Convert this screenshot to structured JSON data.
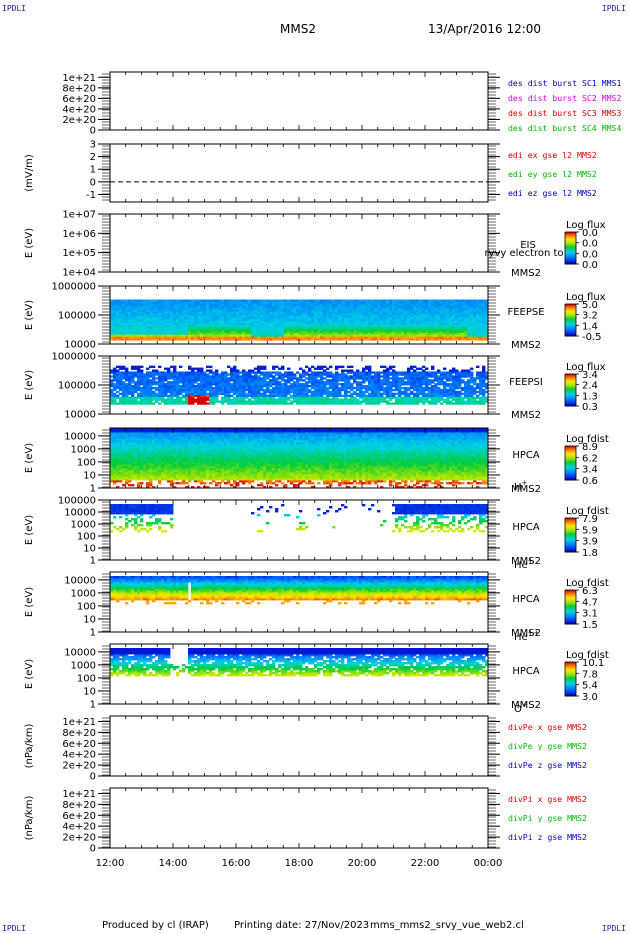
{
  "header": {
    "mission": "MMS2",
    "datetime": "13/Apr/2016 12:00",
    "corner_label": "IPDLI"
  },
  "footer": {
    "produced_by": "Produced by cl (IRAP)",
    "printing_date": "Printing date: 27/Nov/2023",
    "script": "mms_mms2_srvy_vue_web2.cl"
  },
  "time_axis": {
    "ticks": [
      "12:00",
      "14:00",
      "16:00",
      "18:00",
      "20:00",
      "22:00",
      "00:00"
    ],
    "start_hour": 12,
    "end_hour": 24
  },
  "chart_data": [
    {
      "type": "line",
      "ylabel": "",
      "yticks": [
        "1e+21",
        "8e+20",
        "6e+20",
        "4e+20",
        "2e+20",
        "0"
      ],
      "ylim": [
        0,
        1.1e+21
      ],
      "dashed_zero": true,
      "legend": [
        {
          "label": "des dist burst SC1 MMS1",
          "color": "#0000cc"
        },
        {
          "label": "des dist burst SC2 MMS2",
          "color": "#dd00dd"
        },
        {
          "label": "des dist burst SC3 MMS3",
          "color": "#dd0000"
        },
        {
          "label": "des dist burst SC4 MMS4",
          "color": "#00bb00"
        }
      ]
    },
    {
      "type": "line",
      "ylabel": "(mV/m)",
      "yticks": [
        "3",
        "2",
        "1",
        "0",
        "-1"
      ],
      "ylim": [
        -1.6,
        3
      ],
      "dashed_zero": true,
      "legend": [
        {
          "label": "edi ex gse l2 MMS2",
          "color": "#dd0000"
        },
        {
          "label": "edi ey gse l2 MMS2",
          "color": "#00bb00"
        },
        {
          "label": "edi ez gse l2 MMS2",
          "color": "#0000cc"
        }
      ]
    },
    {
      "type": "heatmap",
      "ylabel": "E (eV)",
      "yticks": [
        "1e+07",
        "1e+06",
        "1e+05",
        "1e+04"
      ],
      "ylim": [
        10000.0,
        10000000.0
      ],
      "instrument": "EIS",
      "extra": "ryvy electron to",
      "sc": "MMS2",
      "species": "",
      "cb_title": "Log flux",
      "cb_ticks": [
        "0.0",
        "0.0",
        "0.0",
        "0.0"
      ],
      "pattern": "empty"
    },
    {
      "type": "heatmap",
      "ylabel": "E (eV)",
      "yticks": [
        "1000000",
        "100000",
        "10000"
      ],
      "ylim": [
        10000.0,
        1000000.0
      ],
      "instrument": "FEEPSE",
      "extra": "",
      "sc": "MMS2",
      "species": "",
      "cb_title": "Log flux",
      "cb_ticks": [
        "5.0",
        "3.2",
        "1.4",
        "-0.5"
      ],
      "pattern": "feepse"
    },
    {
      "type": "heatmap",
      "ylabel": "E (eV)",
      "yticks": [
        "1000000",
        "100000",
        "10000"
      ],
      "ylim": [
        10000.0,
        1000000.0
      ],
      "instrument": "FEEPSI",
      "extra": "",
      "sc": "MMS2",
      "species": "",
      "cb_title": "Log flux",
      "cb_ticks": [
        "3.4",
        "2.4",
        "1.3",
        "0.3"
      ],
      "pattern": "feepsi"
    },
    {
      "type": "heatmap",
      "ylabel": "E (eV)",
      "yticks": [
        "10000",
        "1000",
        "100",
        "10",
        "1"
      ],
      "ylim": [
        1,
        40000
      ],
      "instrument": "HPCA",
      "extra": "",
      "sc": "MMS2",
      "species": "H",
      "species_sup": "+",
      "cb_title": "Log fdist",
      "cb_ticks": [
        "8.9",
        "6.2",
        "3.4",
        "0.6"
      ],
      "pattern": "hplus"
    },
    {
      "type": "heatmap",
      "ylabel": "E (eV)",
      "yticks": [
        "100000",
        "10000",
        "1000",
        "100",
        "10",
        "1"
      ],
      "ylim": [
        1,
        100000
      ],
      "instrument": "HPCA",
      "extra": "",
      "sc": "MMS2",
      "species": "He",
      "species_sup": "+",
      "cb_title": "Log fdist",
      "cb_ticks": [
        "7.9",
        "5.9",
        "3.9",
        "1.8"
      ],
      "pattern": "heplus"
    },
    {
      "type": "heatmap",
      "ylabel": "E (eV)",
      "yticks": [
        "10000",
        "1000",
        "100",
        "10",
        "1"
      ],
      "ylim": [
        1,
        40000
      ],
      "instrument": "HPCA",
      "extra": "",
      "sc": "MMS2",
      "species": "He",
      "species_sup": "++",
      "cb_title": "Log fdist",
      "cb_ticks": [
        "6.3",
        "4.7",
        "3.1",
        "1.5"
      ],
      "pattern": "heplusplus"
    },
    {
      "type": "heatmap",
      "ylabel": "E (eV)",
      "yticks": [
        "10000",
        "1000",
        "100",
        "10",
        "1"
      ],
      "ylim": [
        1,
        40000
      ],
      "instrument": "HPCA",
      "extra": "",
      "sc": "MMS2",
      "species": "O",
      "species_sup": "+",
      "cb_title": "Log fdist",
      "cb_ticks": [
        "10.1",
        "7.8",
        "5.4",
        "3.0"
      ],
      "pattern": "oplus"
    },
    {
      "type": "line",
      "ylabel": "(nPa/km)",
      "yticks": [
        "1e+21",
        "8e+20",
        "6e+20",
        "4e+20",
        "2e+20",
        "0"
      ],
      "ylim": [
        0,
        1.1e+21
      ],
      "dashed_zero": true,
      "legend": [
        {
          "label": "divPe x gse MMS2",
          "color": "#dd0000"
        },
        {
          "label": "divPe y gse MMS2",
          "color": "#00bb00"
        },
        {
          "label": "divPe z gse MMS2",
          "color": "#0000cc"
        }
      ]
    },
    {
      "type": "line",
      "ylabel": "(nPa/km)",
      "yticks": [
        "1e+21",
        "8e+20",
        "6e+20",
        "4e+20",
        "2e+20",
        "0"
      ],
      "ylim": [
        0,
        1.1e+21
      ],
      "dashed_zero": true,
      "legend": [
        {
          "label": "divPi x gse MMS2",
          "color": "#dd0000"
        },
        {
          "label": "divPi y gse MMS2",
          "color": "#00bb00"
        },
        {
          "label": "divPi z gse MMS2",
          "color": "#0000cc"
        }
      ]
    }
  ]
}
